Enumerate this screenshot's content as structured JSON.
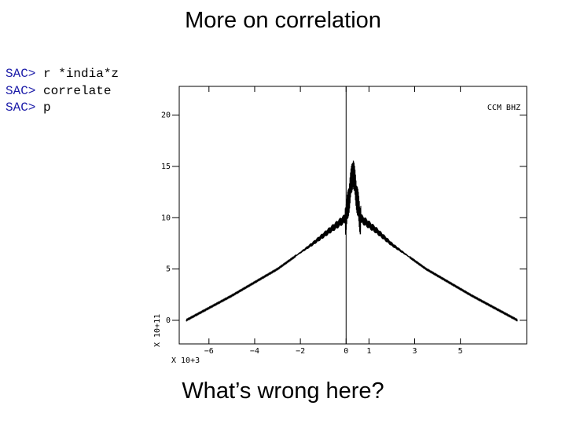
{
  "slide": {
    "title": "More on correlation",
    "question": "What’s wrong here?"
  },
  "console": {
    "lines": [
      {
        "prompt": "SAC>",
        "command": "r *india*z"
      },
      {
        "prompt": "SAC>",
        "command": "correlate"
      },
      {
        "prompt": "SAC>",
        "command": "p"
      }
    ]
  },
  "chart_data": {
    "type": "line",
    "title": "",
    "trace_label": "CCM BHZ",
    "x_multiplier_label": "X 10+3",
    "y_multiplier_label": "X 10+11",
    "xlim": [
      -7.3,
      7.9
    ],
    "ylim": [
      -2.3,
      22.8
    ],
    "x_ticks": [
      -6,
      -4,
      -2,
      0,
      1,
      3,
      5
    ],
    "y_ticks": [
      0,
      5,
      10,
      15,
      20
    ],
    "zero_lag_marker_x": 0,
    "series": [
      {
        "envelope_points": [
          {
            "x": -7.0,
            "y": 0.0
          },
          {
            "x": -5.0,
            "y": 2.4
          },
          {
            "x": -3.0,
            "y": 5.0
          },
          {
            "x": -1.5,
            "y": 7.4
          },
          {
            "x": -0.7,
            "y": 8.8
          },
          {
            "x": 0.0,
            "y": 10.0
          },
          {
            "x": 0.3,
            "y": 14.6
          },
          {
            "x": 0.6,
            "y": 10.0
          },
          {
            "x": 1.3,
            "y": 8.8
          },
          {
            "x": 2.0,
            "y": 7.4
          },
          {
            "x": 3.5,
            "y": 5.0
          },
          {
            "x": 5.5,
            "y": 2.4
          },
          {
            "x": 7.5,
            "y": 0.0
          }
        ]
      }
    ]
  }
}
